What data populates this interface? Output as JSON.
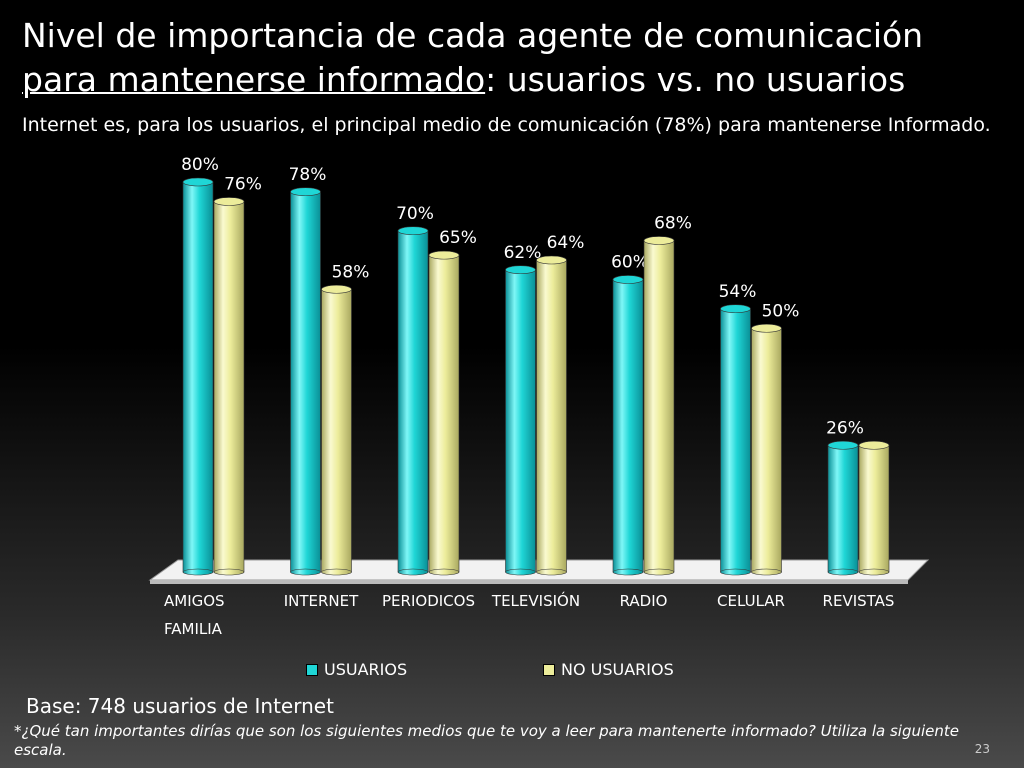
{
  "title": {
    "line1": "Nivel de importancia de cada agente de comunicación",
    "line2_underlined": "para mantenerse informado",
    "line2_rest": ":  usuarios vs. no usuarios"
  },
  "subtitle": "Internet es, para los usuarios, el principal medio de comunicación (78%) para mantenerse Informado.",
  "chart_data": {
    "type": "bar",
    "style": "3d-cylinder",
    "categories": [
      "AMIGOS FAMILIA",
      "INTERNET",
      "PERIODICOS",
      "TELEVISIÓN",
      "RADIO",
      "CELULAR",
      "REVISTAS"
    ],
    "series": [
      {
        "name": "USUARIOS",
        "color": "#1fd6d6",
        "values": [
          80,
          78,
          70,
          62,
          60,
          54,
          26
        ],
        "labels": [
          "80%",
          "78%",
          "70%",
          "62%",
          "60%",
          "54%",
          "26%"
        ]
      },
      {
        "name": "NO USUARIOS",
        "color": "#ecec9a",
        "values": [
          76,
          58,
          65,
          64,
          68,
          50,
          26
        ],
        "labels": [
          "76%",
          "58%",
          "65%",
          "64%",
          "68%",
          "50%",
          ""
        ]
      }
    ],
    "ylim": [
      0,
      80
    ],
    "grid": false,
    "legend_position": "bottom"
  },
  "base": "Base: 748 usuarios de Internet",
  "footnote": "*¿Qué tan importantes dirías que son los siguientes medios que te voy a leer para mantenerte informado? Utiliza la siguiente escala.",
  "page_number": "23"
}
